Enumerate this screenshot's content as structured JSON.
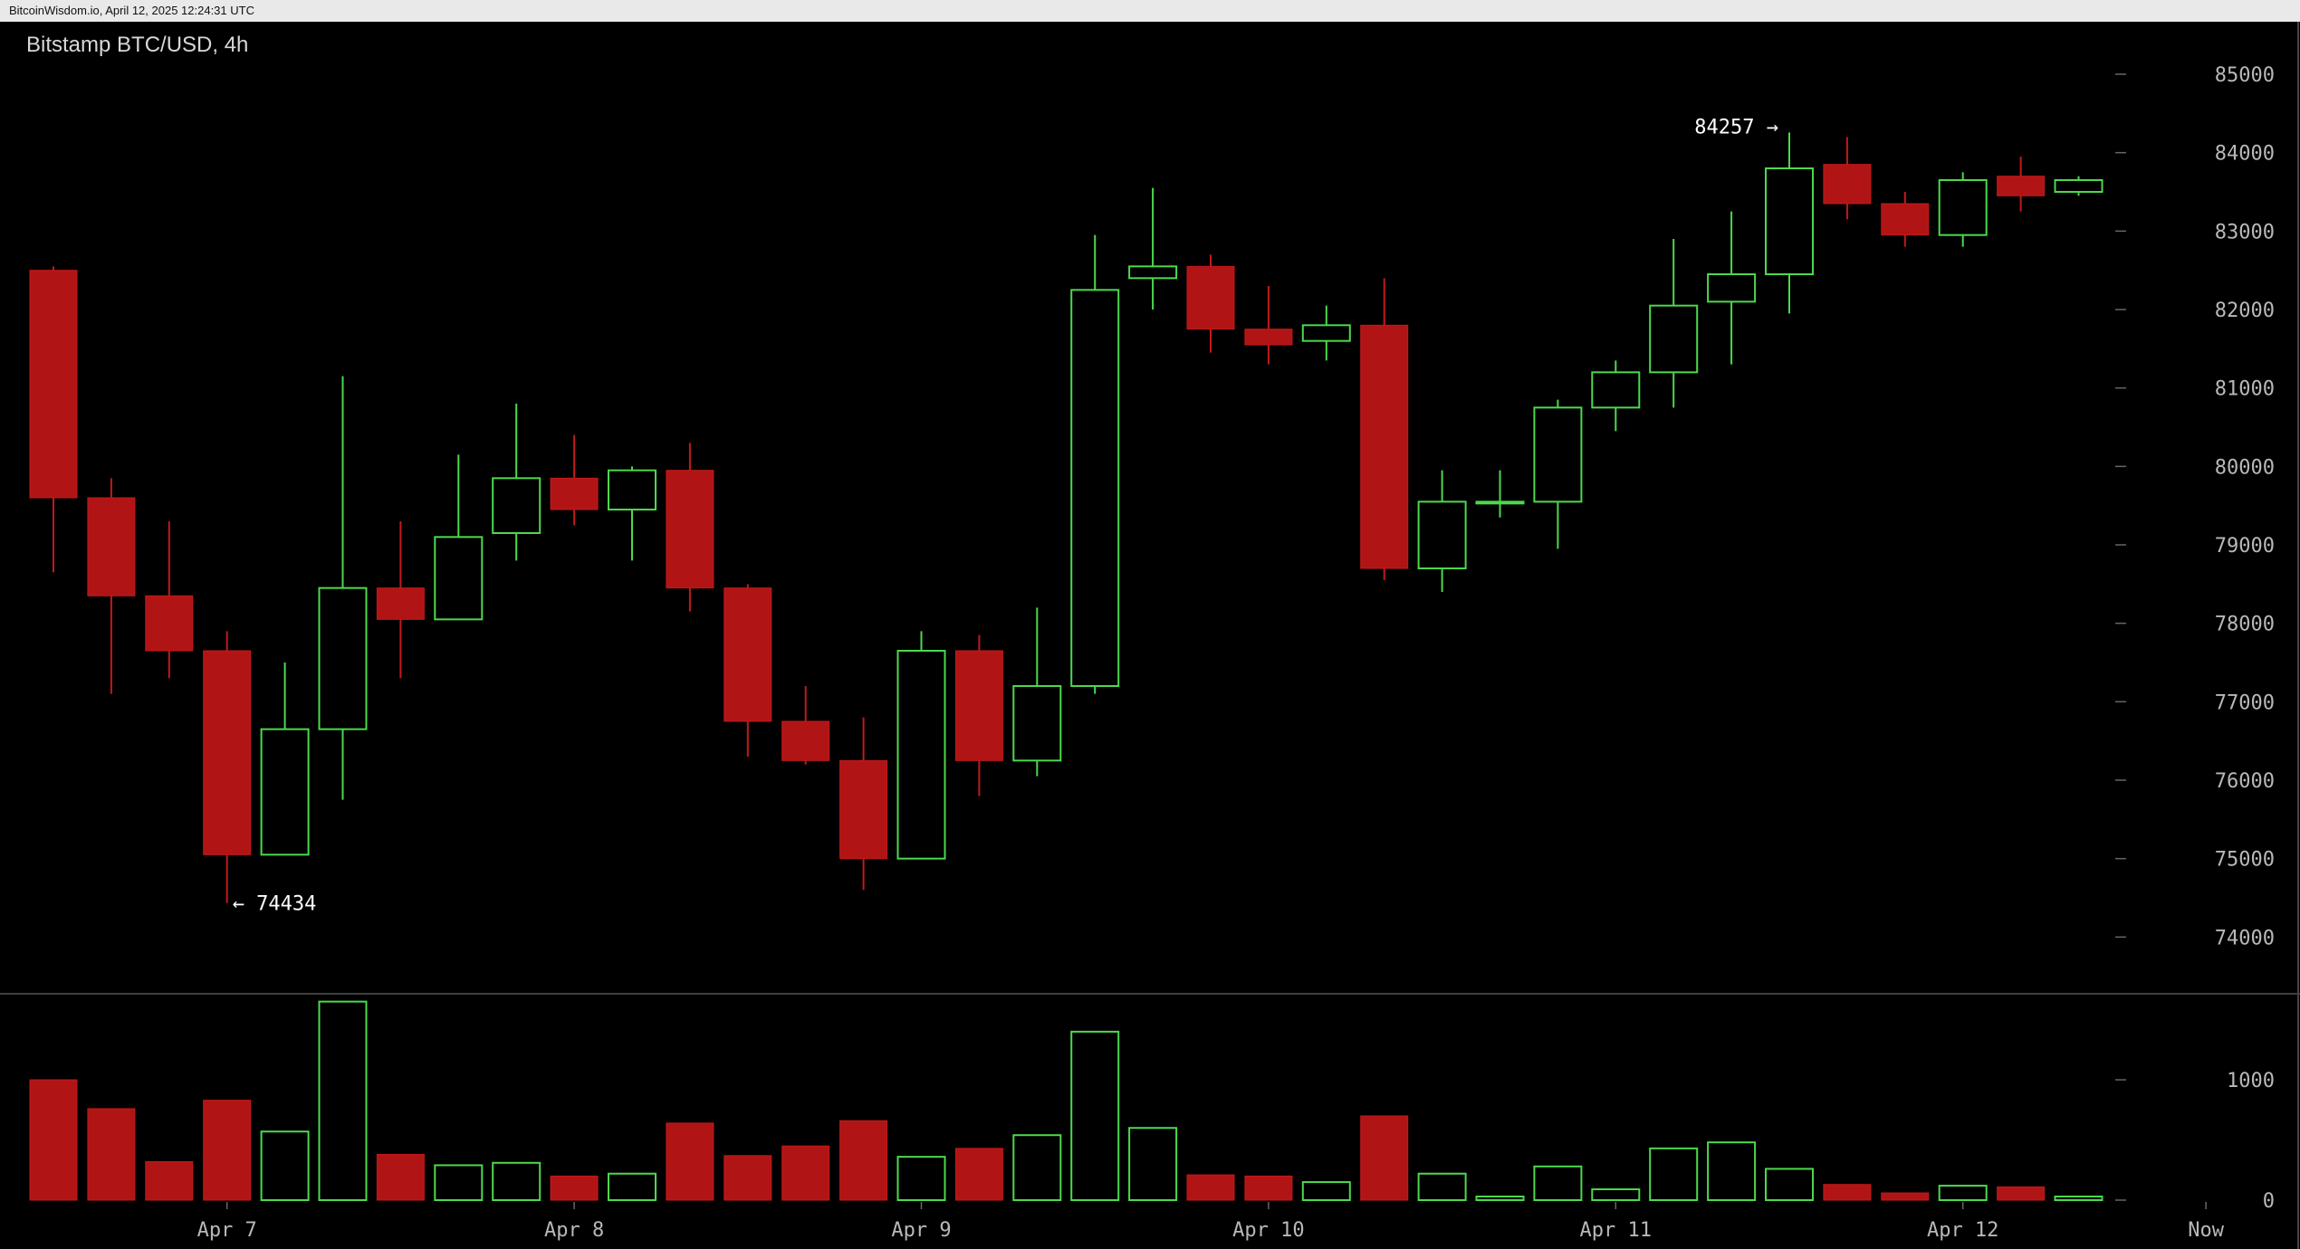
{
  "watermark": "BitcoinWisdom.io, April 12, 2025 12:24:31 UTC",
  "title": "Bitstamp BTC/USD, 4h",
  "colors": {
    "up": "#4cd94c",
    "down": "#b11414",
    "background": "#000000",
    "axis_text": "#b8b8b8",
    "separator": "#555555"
  },
  "chart_data": {
    "type": "candlestick",
    "title": "Bitstamp BTC/USD, 4h",
    "price_ticks": [
      "85000",
      "84000",
      "83000",
      "82000",
      "81000",
      "80000",
      "79000",
      "78000",
      "77000",
      "76000",
      "75000",
      "74000"
    ],
    "price_range": [
      73300,
      85600
    ],
    "volume_ticks": [
      "1000",
      "0"
    ],
    "volume_range": [
      0,
      1700
    ],
    "x_labels": [
      {
        "label": "Apr 7",
        "index": 3
      },
      {
        "label": "Apr 8",
        "index": 9
      },
      {
        "label": "Apr 9",
        "index": 15
      },
      {
        "label": "Apr 10",
        "index": 21
      },
      {
        "label": "Apr 11",
        "index": 27
      },
      {
        "label": "Apr 12",
        "index": 33
      },
      {
        "label": "Now",
        "index": 37.2
      }
    ],
    "annotations": [
      {
        "text": "← 74434",
        "index": 3,
        "price": 74434,
        "side": "right"
      },
      {
        "text": "84257 →",
        "index": 30,
        "price": 84257,
        "side": "left"
      }
    ],
    "candles": [
      {
        "o": 82500,
        "h": 82550,
        "l": 78650,
        "c": 79600,
        "v": 1000
      },
      {
        "o": 79600,
        "h": 79850,
        "l": 77100,
        "c": 78350,
        "v": 760
      },
      {
        "o": 78350,
        "h": 79300,
        "l": 77300,
        "c": 77650,
        "v": 320
      },
      {
        "o": 77650,
        "h": 77900,
        "l": 74434,
        "c": 75050,
        "v": 830
      },
      {
        "o": 75050,
        "h": 77500,
        "l": 75050,
        "c": 76650,
        "v": 570
      },
      {
        "o": 76650,
        "h": 81150,
        "l": 75750,
        "c": 78450,
        "v": 1650
      },
      {
        "o": 78450,
        "h": 79300,
        "l": 77300,
        "c": 78050,
        "v": 380
      },
      {
        "o": 78050,
        "h": 80150,
        "l": 78050,
        "c": 79100,
        "v": 290
      },
      {
        "o": 79150,
        "h": 80800,
        "l": 78800,
        "c": 79850,
        "v": 310
      },
      {
        "o": 79850,
        "h": 80400,
        "l": 79250,
        "c": 79450,
        "v": 200
      },
      {
        "o": 79450,
        "h": 80000,
        "l": 78800,
        "c": 79950,
        "v": 220
      },
      {
        "o": 79950,
        "h": 80300,
        "l": 78150,
        "c": 78450,
        "v": 640
      },
      {
        "o": 78450,
        "h": 78500,
        "l": 76300,
        "c": 76750,
        "v": 370
      },
      {
        "o": 76750,
        "h": 77200,
        "l": 76200,
        "c": 76250,
        "v": 450
      },
      {
        "o": 76250,
        "h": 76800,
        "l": 74600,
        "c": 75000,
        "v": 660
      },
      {
        "o": 75000,
        "h": 77900,
        "l": 75000,
        "c": 77650,
        "v": 360
      },
      {
        "o": 77650,
        "h": 77850,
        "l": 75800,
        "c": 76250,
        "v": 430
      },
      {
        "o": 76250,
        "h": 78200,
        "l": 76050,
        "c": 77200,
        "v": 540
      },
      {
        "o": 77200,
        "h": 82950,
        "l": 77100,
        "c": 82250,
        "v": 1400
      },
      {
        "o": 82400,
        "h": 83550,
        "l": 82000,
        "c": 82550,
        "v": 600
      },
      {
        "o": 82550,
        "h": 82700,
        "l": 81450,
        "c": 81750,
        "v": 210
      },
      {
        "o": 81750,
        "h": 82300,
        "l": 81300,
        "c": 81550,
        "v": 200
      },
      {
        "o": 81600,
        "h": 82050,
        "l": 81350,
        "c": 81800,
        "v": 150
      },
      {
        "o": 81800,
        "h": 82400,
        "l": 78550,
        "c": 78700,
        "v": 700
      },
      {
        "o": 78700,
        "h": 79950,
        "l": 78400,
        "c": 79550,
        "v": 220
      },
      {
        "o": 79550,
        "h": 79950,
        "l": 79350,
        "c": 79550,
        "v": 30
      },
      {
        "o": 79550,
        "h": 80850,
        "l": 78950,
        "c": 80750,
        "v": 280
      },
      {
        "o": 80750,
        "h": 81350,
        "l": 80450,
        "c": 81200,
        "v": 90
      },
      {
        "o": 81200,
        "h": 82900,
        "l": 80750,
        "c": 82050,
        "v": 430
      },
      {
        "o": 82100,
        "h": 83250,
        "l": 81300,
        "c": 82450,
        "v": 480
      },
      {
        "o": 82450,
        "h": 84257,
        "l": 81950,
        "c": 83800,
        "v": 260
      },
      {
        "o": 83850,
        "h": 84200,
        "l": 83150,
        "c": 83350,
        "v": 130
      },
      {
        "o": 83350,
        "h": 83500,
        "l": 82800,
        "c": 82950,
        "v": 60
      },
      {
        "o": 82950,
        "h": 83750,
        "l": 82800,
        "c": 83650,
        "v": 120
      },
      {
        "o": 83700,
        "h": 83950,
        "l": 83250,
        "c": 83450,
        "v": 110
      },
      {
        "o": 83500,
        "h": 83700,
        "l": 83450,
        "c": 83650,
        "v": 30
      }
    ]
  }
}
